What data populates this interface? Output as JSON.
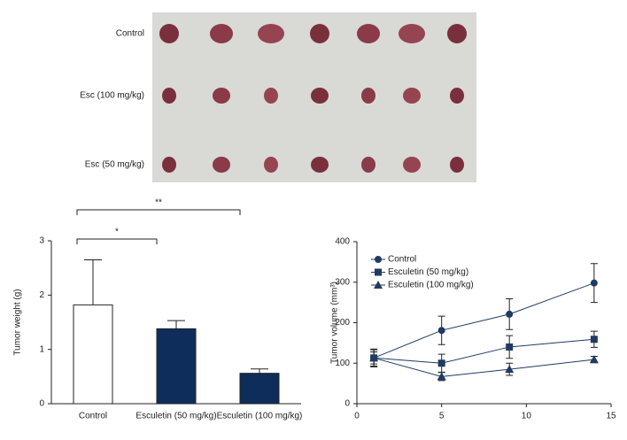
{
  "photo": {
    "row_labels": [
      "Control",
      "Esc (100 mg/kg)",
      "Esc (50 mg/kg)"
    ]
  },
  "chart_data": [
    {
      "type": "bar",
      "ylabel": "Tumor weight (g)",
      "categories": [
        "Control",
        "Esculetin (50 mg/kg)",
        "Esculetin (100 mg/kg)"
      ],
      "values": [
        1.82,
        1.38,
        0.56
      ],
      "errors": [
        0.83,
        0.15,
        0.08
      ],
      "colors": [
        "#ffffff",
        "#0f2d5a",
        "#0f2d5a"
      ],
      "ylim": [
        0,
        3
      ],
      "yticks": [
        0,
        1,
        2,
        3
      ],
      "annotations": [
        "*",
        "**"
      ]
    },
    {
      "type": "line",
      "ylabel": "Tumor volume (mm³)",
      "x": [
        1,
        5,
        9,
        14
      ],
      "xlim": [
        0,
        15
      ],
      "xticks": [
        0,
        5,
        10,
        15
      ],
      "ylim": [
        0,
        400
      ],
      "yticks": [
        0,
        100,
        200,
        300,
        400
      ],
      "legend": "upper-left",
      "series": [
        {
          "name": "Control",
          "color": "#1f3b63",
          "marker": "circle",
          "values": [
            113,
            181,
            221,
            298
          ],
          "errors": [
            22,
            35,
            38,
            48
          ]
        },
        {
          "name": "Esculetin (50 mg/kg)",
          "color": "#1f3b63",
          "marker": "square",
          "values": [
            113,
            100,
            140,
            159
          ],
          "errors": [
            20,
            22,
            28,
            20
          ]
        },
        {
          "name": "Esculetin (100 mg/kg)",
          "color": "#1f3b63",
          "marker": "triangle",
          "values": [
            113,
            67,
            85,
            109
          ],
          "errors": [
            15,
            10,
            15,
            8
          ]
        }
      ]
    }
  ]
}
